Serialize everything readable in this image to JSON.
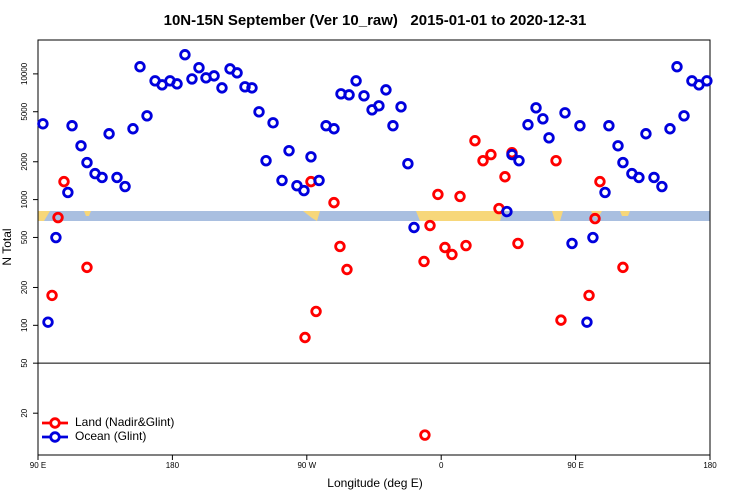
{
  "chart_data": {
    "type": "scatter",
    "title": "10N-15N September (Ver 10_raw)   2015-01-01 to 2020-12-31",
    "xlabel": "Longitude (deg E)",
    "ylabel": "N Total",
    "xlim": [
      90,
      540
    ],
    "xticks": [
      {
        "value": 90,
        "label": "90 E"
      },
      180,
      {
        "value": 270,
        "label": "90 W"
      },
      {
        "value": 360,
        "label": "0"
      },
      {
        "value": 450,
        "label": "90 E"
      },
      {
        "value": 540,
        "label": "180"
      }
    ],
    "ylim": [
      9.3,
      18600
    ],
    "log_y": true,
    "yticks": [
      20,
      50,
      100,
      200,
      500,
      1000,
      2000,
      5000,
      10000
    ],
    "hline": 50,
    "legend": "lower left",
    "series": [
      {
        "name": "Land (Nadir&Glint)",
        "color": "#ff0000",
        "x": [
          99.4,
          103.4,
          107.4,
          122.8,
          268.8,
          272.8,
          276.2,
          288.2,
          292.2,
          296.9,
          349.1,
          348.5,
          352.5,
          357.8,
          362.5,
          367.2,
          372.6,
          376.6,
          382.6,
          388,
          393.3,
          398.7,
          402.7,
          407.4,
          411.4,
          436.9,
          440.2,
          459,
          463,
          466.3,
          481.7
        ],
        "values": [
          173,
          720,
          1390,
          289,
          80,
          1390,
          129,
          946,
          424,
          278,
          13.4,
          322,
          622,
          1100,
          416,
          366,
          1060,
          431,
          2940,
          2040,
          2280,
          849,
          1520,
          2360,
          448,
          2040,
          110,
          173,
          706,
          1390,
          289
        ]
      },
      {
        "name": "Ocean (Glint)",
        "color": "#0000dd",
        "x": [
          93.3,
          96.7,
          102,
          110,
          112.8,
          118.8,
          122.8,
          128.2,
          132.9,
          137.6,
          142.9,
          148.3,
          153.6,
          158.3,
          163,
          168.4,
          173.1,
          178.4,
          183.1,
          188.4,
          193.1,
          197.8,
          202.5,
          207.9,
          213.2,
          218.6,
          223.3,
          228.6,
          233.3,
          238,
          242.7,
          247.4,
          253.4,
          258.1,
          263.4,
          268.1,
          272.8,
          278.2,
          282.9,
          288.2,
          292.9,
          298.3,
          303,
          308.3,
          313.7,
          318.3,
          323,
          327.7,
          333.1,
          337.7,
          341.8,
          404,
          407.4,
          412.1,
          418.1,
          423.5,
          428.1,
          432.2,
          442.9,
          447.6,
          452.9,
          457.6,
          461.6,
          469.7,
          472.3,
          478.4,
          481.7,
          487.7,
          492.4,
          497.1,
          502.5,
          507.8,
          513.2,
          517.9,
          522.6,
          527.9,
          532.6,
          537.9
        ],
        "values": [
          4010,
          106,
          499,
          1140,
          3870,
          2680,
          1970,
          1610,
          1500,
          3340,
          1500,
          1270,
          3660,
          11400,
          4640,
          8800,
          8180,
          8800,
          8330,
          14200,
          9120,
          11200,
          9300,
          9640,
          7740,
          10960,
          10190,
          7890,
          7740,
          4990,
          2040,
          4080,
          1420,
          2450,
          1290,
          1180,
          2190,
          1420,
          3870,
          3660,
          6940,
          6810,
          8800,
          6690,
          5180,
          5570,
          7460,
          3870,
          5470,
          1930,
          600,
          803,
          2280,
          2040,
          3940,
          5370,
          4390,
          3100,
          4900,
          448,
          3870,
          106,
          499,
          1140,
          3870,
          2680,
          1970,
          1610,
          1500,
          3340,
          1500,
          1270,
          3660,
          11400,
          4640,
          8800,
          8180,
          8800
        ]
      }
    ]
  }
}
